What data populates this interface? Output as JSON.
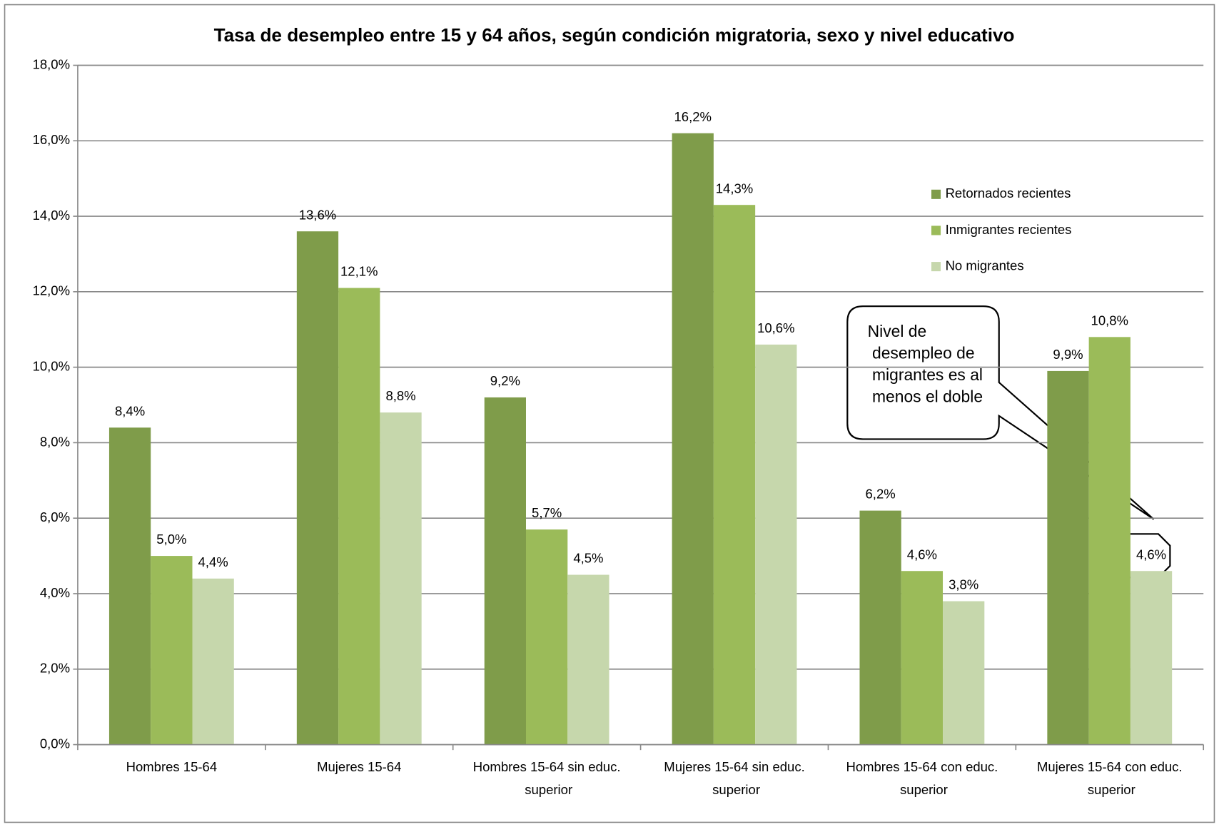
{
  "chart_data": {
    "type": "bar",
    "title": "Tasa de desempleo entre 15 y 64 años, según condición migratoria, sexo y nivel educativo",
    "categories": [
      "Hombres 15-64",
      "Mujeres 15-64",
      "Hombres 15-64 sin educ. superior",
      "Mujeres 15-64 sin educ. superior",
      "Hombres 15-64 con educ. superior",
      "Mujeres 15-64 con educ. superior"
    ],
    "series": [
      {
        "name": "Retornados recientes",
        "color": "#7f9c4a",
        "values": [
          8.4,
          13.6,
          9.2,
          16.2,
          6.2,
          9.9
        ],
        "value_labels": [
          "8,4%",
          "13,6%",
          "9,2%",
          "16,2%",
          "6,2%",
          "9,9%"
        ]
      },
      {
        "name": "Inmigrantes recientes",
        "color": "#9bbb59",
        "values": [
          5.0,
          12.1,
          5.7,
          14.3,
          4.6,
          10.8
        ],
        "value_labels": [
          "5,0%",
          "12,1%",
          "5,7%",
          "14,3%",
          "4,6%",
          "10,8%"
        ]
      },
      {
        "name": "No migrantes",
        "color": "#c6d7ac",
        "values": [
          4.4,
          8.8,
          4.5,
          10.6,
          3.8,
          4.6
        ],
        "value_labels": [
          "4,4%",
          "8,8%",
          "4,5%",
          "10,6%",
          "3,8%",
          "4,6%"
        ]
      }
    ],
    "ylim": [
      0,
      18
    ],
    "yticks": [
      {
        "value": 0,
        "label": "0,0%"
      },
      {
        "value": 2,
        "label": "2,0%"
      },
      {
        "value": 4,
        "label": "4,0%"
      },
      {
        "value": 6,
        "label": "6,0%"
      },
      {
        "value": 8,
        "label": "8,0%"
      },
      {
        "value": 10,
        "label": "10,0%"
      },
      {
        "value": 12,
        "label": "12,0%"
      },
      {
        "value": 14,
        "label": "14,0%"
      },
      {
        "value": 16,
        "label": "16,0%"
      },
      {
        "value": 18,
        "label": "18,0%"
      }
    ],
    "grid": true,
    "legend": "right",
    "annotation": "Nivel de desempleo de migrantes es al menos el doble"
  }
}
